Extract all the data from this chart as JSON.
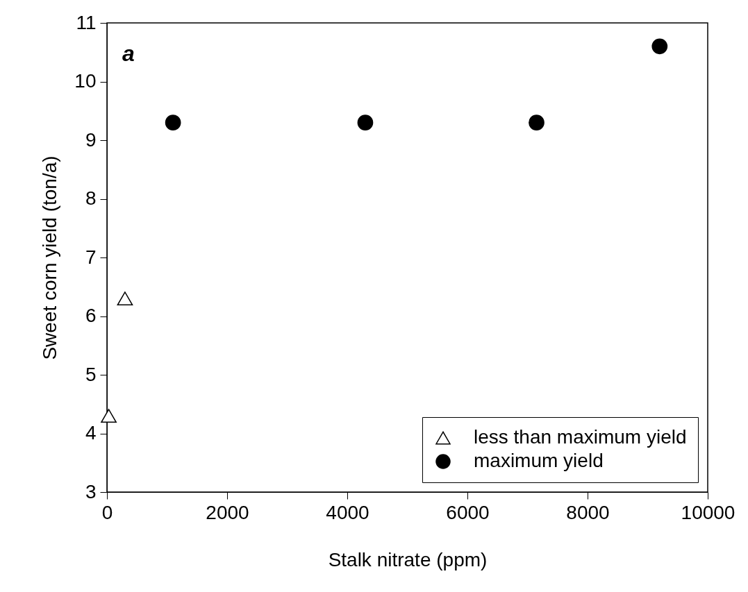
{
  "chart_data": {
    "type": "scatter",
    "xlabel": "Stalk nitrate (ppm)",
    "ylabel": "Sweet corn yield (ton/a)",
    "annotations": [
      "a"
    ],
    "xlim": [
      0,
      10000
    ],
    "xticks": [
      0,
      2000,
      4000,
      6000,
      8000,
      10000
    ],
    "ylim": [
      3,
      11
    ],
    "yticks": [
      3,
      4,
      5,
      6,
      7,
      8,
      9,
      10,
      11
    ],
    "grid": false,
    "legend": "bottom right",
    "series": [
      {
        "name": "less than maximum yield",
        "color": "#000000",
        "marker": "triangle",
        "x": [
          30,
          300
        ],
        "values": [
          4.3,
          6.3
        ]
      },
      {
        "name": "maximum yield",
        "color": "#000000",
        "marker": "circle",
        "x": [
          1100,
          4300,
          7150,
          9200
        ],
        "values": [
          9.3,
          9.3,
          9.3,
          10.6
        ]
      }
    ]
  }
}
